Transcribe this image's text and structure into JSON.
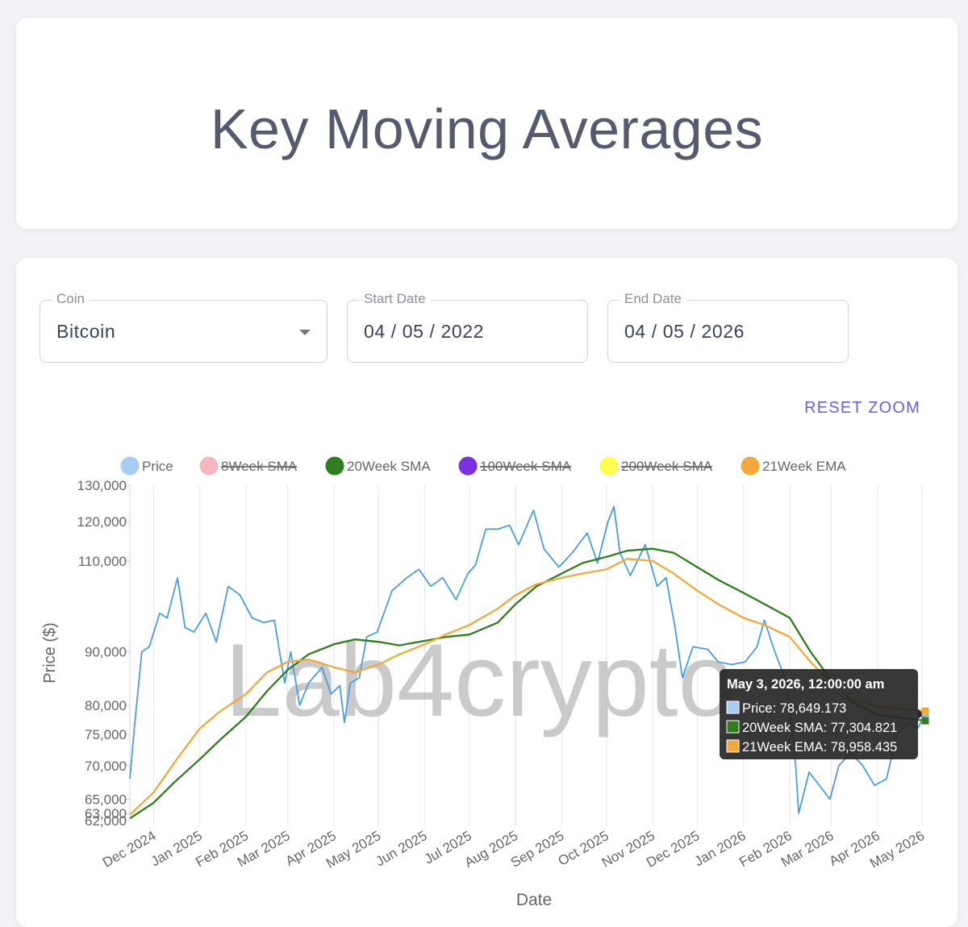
{
  "header": {
    "title": "Key Moving Averages"
  },
  "filters": {
    "coin": {
      "label": "Coin",
      "value": "Bitcoin"
    },
    "start_date": {
      "label": "Start Date",
      "value": "04 / 05 / 2022"
    },
    "end_date": {
      "label": "End Date",
      "value": "04 / 05 / 2026"
    }
  },
  "toolbar": {
    "reset_zoom_label": "RESET ZOOM"
  },
  "watermark": "Lab4crypto",
  "tooltip": {
    "title": "May 3, 2026, 12:00:00 am",
    "lines": [
      "Price: 78,649.173",
      "20Week SMA: 77,304.821",
      "21Week EMA: 78,958.435"
    ]
  },
  "chart_data": {
    "type": "line",
    "xlabel": "Date",
    "ylabel": "Price ($)",
    "x_range": [
      "2024-11-15",
      "2026-05-03"
    ],
    "y_range": [
      62000,
      130000
    ],
    "y_scale": "log",
    "y_ticks": [
      62000,
      63000,
      65000,
      70000,
      75000,
      80000,
      90000,
      110000,
      120000,
      130000
    ],
    "y_tick_labels": [
      "62,000",
      "63,000",
      "65,000",
      "70,000",
      "75,000",
      "80,000",
      "90,000",
      "110,000",
      "120,000",
      "130,000"
    ],
    "x_ticks": [
      "2024-12-01",
      "2025-01-01",
      "2025-02-01",
      "2025-03-01",
      "2025-04-01",
      "2025-05-01",
      "2025-06-01",
      "2025-07-01",
      "2025-08-01",
      "2025-09-01",
      "2025-10-01",
      "2025-11-01",
      "2025-12-01",
      "2026-01-01",
      "2026-02-01",
      "2026-03-01",
      "2026-04-01",
      "2026-05-01"
    ],
    "x_tick_labels": [
      "Dec 2024",
      "Jan 2025",
      "Feb 2025",
      "Mar 2025",
      "Apr 2025",
      "May 2025",
      "Jun 2025",
      "Jul 2025",
      "Aug 2025",
      "Sep 2025",
      "Oct 2025",
      "Nov 2025",
      "Dec 2025",
      "Jan 2026",
      "Feb 2026",
      "Mar 2026",
      "Apr 2026",
      "May 2026"
    ],
    "grid": "vertical",
    "legend_position": "top",
    "legend": [
      {
        "name": "Price",
        "color": "#a9cdf2",
        "hidden": false
      },
      {
        "name": "8Week SMA",
        "color": "#f4b6c2",
        "hidden": true
      },
      {
        "name": "20Week SMA",
        "color": "#2e7d1f",
        "hidden": false
      },
      {
        "name": "100Week SMA",
        "color": "#7b2fe0",
        "hidden": true
      },
      {
        "name": "200Week SMA",
        "color": "#ffff4d",
        "hidden": true
      },
      {
        "name": "21Week EMA",
        "color": "#f2a93b",
        "hidden": false
      }
    ],
    "series": [
      {
        "name": "Price",
        "color": "#4a9ee0",
        "points": [
          [
            "2024-11-15",
            68000
          ],
          [
            "2024-11-18",
            76000
          ],
          [
            "2024-11-23",
            90000
          ],
          [
            "2024-11-28",
            91000
          ],
          [
            "2024-12-05",
            98000
          ],
          [
            "2024-12-10",
            97000
          ],
          [
            "2024-12-17",
            106000
          ],
          [
            "2024-12-22",
            95000
          ],
          [
            "2024-12-28",
            94000
          ],
          [
            "2025-01-05",
            98000
          ],
          [
            "2025-01-12",
            92000
          ],
          [
            "2025-01-20",
            104000
          ],
          [
            "2025-01-28",
            102000
          ],
          [
            "2025-02-05",
            97000
          ],
          [
            "2025-02-13",
            96000
          ],
          [
            "2025-02-20",
            96500
          ],
          [
            "2025-02-27",
            84000
          ],
          [
            "2025-03-03",
            90000
          ],
          [
            "2025-03-09",
            80000
          ],
          [
            "2025-03-15",
            84000
          ],
          [
            "2025-03-24",
            87000
          ],
          [
            "2025-03-30",
            82000
          ],
          [
            "2025-04-05",
            83500
          ],
          [
            "2025-04-08",
            77000
          ],
          [
            "2025-04-12",
            84000
          ],
          [
            "2025-04-18",
            85000
          ],
          [
            "2025-04-23",
            93000
          ],
          [
            "2025-04-30",
            94000
          ],
          [
            "2025-05-10",
            103000
          ],
          [
            "2025-05-20",
            106000
          ],
          [
            "2025-05-28",
            108000
          ],
          [
            "2025-06-05",
            104000
          ],
          [
            "2025-06-13",
            106000
          ],
          [
            "2025-06-22",
            101000
          ],
          [
            "2025-06-30",
            107000
          ],
          [
            "2025-07-05",
            109000
          ],
          [
            "2025-07-12",
            118000
          ],
          [
            "2025-07-20",
            118000
          ],
          [
            "2025-07-28",
            119000
          ],
          [
            "2025-08-03",
            114000
          ],
          [
            "2025-08-13",
            123000
          ],
          [
            "2025-08-20",
            113000
          ],
          [
            "2025-08-30",
            108500
          ],
          [
            "2025-09-08",
            112000
          ],
          [
            "2025-09-18",
            117000
          ],
          [
            "2025-09-25",
            109500
          ],
          [
            "2025-10-02",
            120000
          ],
          [
            "2025-10-06",
            124000
          ],
          [
            "2025-10-10",
            112000
          ],
          [
            "2025-10-17",
            106500
          ],
          [
            "2025-10-27",
            114000
          ],
          [
            "2025-11-04",
            104000
          ],
          [
            "2025-11-10",
            106000
          ],
          [
            "2025-11-16",
            95000
          ],
          [
            "2025-11-21",
            85000
          ],
          [
            "2025-11-28",
            91000
          ],
          [
            "2025-12-08",
            90500
          ],
          [
            "2025-12-15",
            88000
          ],
          [
            "2025-12-24",
            87500
          ],
          [
            "2026-01-02",
            88000
          ],
          [
            "2026-01-10",
            91000
          ],
          [
            "2026-01-15",
            96500
          ],
          [
            "2026-01-22",
            90000
          ],
          [
            "2026-01-30",
            84000
          ],
          [
            "2026-02-05",
            70000
          ],
          [
            "2026-02-07",
            63000
          ],
          [
            "2026-02-14",
            69000
          ],
          [
            "2026-02-21",
            67000
          ],
          [
            "2026-02-28",
            65000
          ],
          [
            "2026-03-06",
            70000
          ],
          [
            "2026-03-14",
            72000
          ],
          [
            "2026-03-22",
            70000
          ],
          [
            "2026-03-30",
            67000
          ],
          [
            "2026-04-07",
            68000
          ],
          [
            "2026-04-14",
            75000
          ],
          [
            "2026-04-22",
            77000
          ],
          [
            "2026-04-28",
            76000
          ],
          [
            "2026-05-03",
            78649.173
          ]
        ]
      },
      {
        "name": "20Week SMA",
        "color": "#2e7d1f",
        "points": [
          [
            "2024-11-15",
            62300
          ],
          [
            "2024-12-01",
            64500
          ],
          [
            "2024-12-15",
            67500
          ],
          [
            "2025-01-01",
            71000
          ],
          [
            "2025-01-15",
            74200
          ],
          [
            "2025-02-01",
            78000
          ],
          [
            "2025-02-15",
            82500
          ],
          [
            "2025-03-01",
            86500
          ],
          [
            "2025-03-15",
            89500
          ],
          [
            "2025-04-01",
            91500
          ],
          [
            "2025-04-15",
            92500
          ],
          [
            "2025-05-01",
            92000
          ],
          [
            "2025-05-15",
            91300
          ],
          [
            "2025-06-01",
            92200
          ],
          [
            "2025-06-15",
            93000
          ],
          [
            "2025-07-01",
            93500
          ],
          [
            "2025-07-20",
            96000
          ],
          [
            "2025-08-01",
            100000
          ],
          [
            "2025-08-15",
            104000
          ],
          [
            "2025-09-01",
            107000
          ],
          [
            "2025-09-15",
            109500
          ],
          [
            "2025-10-01",
            111000
          ],
          [
            "2025-10-15",
            112500
          ],
          [
            "2025-11-01",
            113000
          ],
          [
            "2025-11-15",
            112000
          ],
          [
            "2025-12-01",
            108500
          ],
          [
            "2025-12-15",
            105500
          ],
          [
            "2026-01-01",
            102500
          ],
          [
            "2026-01-15",
            100000
          ],
          [
            "2026-02-01",
            97000
          ],
          [
            "2026-02-15",
            90000
          ],
          [
            "2026-03-01",
            84500
          ],
          [
            "2026-03-15",
            80500
          ],
          [
            "2026-04-01",
            78300
          ],
          [
            "2026-05-03",
            77304.821
          ]
        ]
      },
      {
        "name": "21Week EMA",
        "color": "#f2a93b",
        "points": [
          [
            "2024-11-15",
            62800
          ],
          [
            "2024-12-01",
            66000
          ],
          [
            "2024-12-15",
            70500
          ],
          [
            "2025-01-01",
            76000
          ],
          [
            "2025-01-15",
            79000
          ],
          [
            "2025-02-01",
            82000
          ],
          [
            "2025-02-15",
            86000
          ],
          [
            "2025-03-01",
            88000
          ],
          [
            "2025-03-15",
            88500
          ],
          [
            "2025-04-01",
            87000
          ],
          [
            "2025-04-15",
            86000
          ],
          [
            "2025-05-01",
            87500
          ],
          [
            "2025-05-15",
            89500
          ],
          [
            "2025-06-01",
            91500
          ],
          [
            "2025-06-15",
            93500
          ],
          [
            "2025-07-01",
            95500
          ],
          [
            "2025-07-20",
            99000
          ],
          [
            "2025-08-01",
            102000
          ],
          [
            "2025-08-15",
            104500
          ],
          [
            "2025-09-01",
            106000
          ],
          [
            "2025-09-15",
            107000
          ],
          [
            "2025-10-01",
            108000
          ],
          [
            "2025-10-15",
            110500
          ],
          [
            "2025-11-01",
            110000
          ],
          [
            "2025-11-15",
            107000
          ],
          [
            "2025-12-01",
            103000
          ],
          [
            "2025-12-15",
            100000
          ],
          [
            "2026-01-01",
            97000
          ],
          [
            "2026-01-15",
            95500
          ],
          [
            "2026-02-01",
            93000
          ],
          [
            "2026-02-15",
            88000
          ],
          [
            "2026-03-01",
            84000
          ],
          [
            "2026-03-15",
            81000
          ],
          [
            "2026-04-01",
            79800
          ],
          [
            "2026-05-03",
            78958.435
          ]
        ]
      }
    ]
  }
}
